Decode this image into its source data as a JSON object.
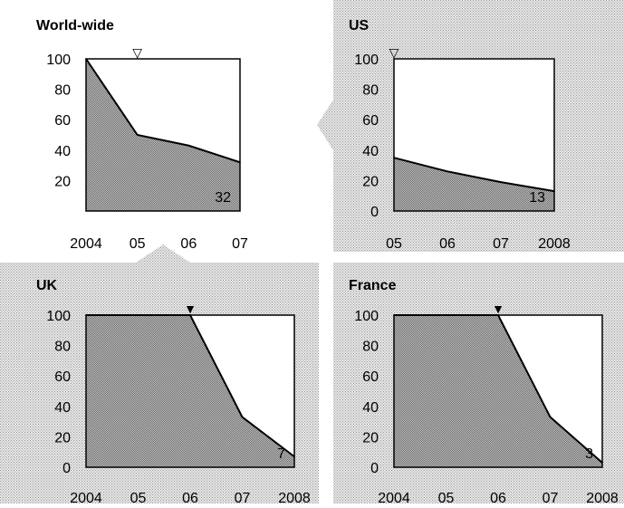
{
  "chart_data": [
    {
      "type": "area",
      "title": "World-wide",
      "x": [
        2004,
        2005,
        2006,
        2007
      ],
      "x_tick_labels": [
        "2004",
        "05",
        "06",
        "07"
      ],
      "values": [
        100,
        50,
        43,
        32
      ],
      "y_ticks": [
        20,
        40,
        60,
        80,
        100
      ],
      "ylim": [
        0,
        100
      ],
      "end_label": "32",
      "marker_x": 2005,
      "marker": "▽"
    },
    {
      "type": "area",
      "title": "US",
      "x": [
        2005,
        2006,
        2007,
        2008
      ],
      "x_tick_labels": [
        "05",
        "06",
        "07",
        "2008"
      ],
      "values": [
        35,
        26,
        19,
        13
      ],
      "y_ticks": [
        0,
        20,
        40,
        60,
        80,
        100
      ],
      "ylim": [
        0,
        100
      ],
      "end_label": "13",
      "marker_x": 2005,
      "marker": "▽"
    },
    {
      "type": "area",
      "title": "UK",
      "x": [
        2004,
        2005,
        2006,
        2007,
        2008
      ],
      "x_tick_labels": [
        "2004",
        "05",
        "06",
        "07",
        "2008"
      ],
      "values": [
        100,
        100,
        100,
        33,
        7
      ],
      "y_ticks": [
        0,
        20,
        40,
        60,
        80,
        100
      ],
      "ylim": [
        0,
        100
      ],
      "end_label": "7",
      "marker_x": 2006,
      "marker": "▼"
    },
    {
      "type": "area",
      "title": "France",
      "x": [
        2004,
        2005,
        2006,
        2007,
        2008
      ],
      "x_tick_labels": [
        "2004",
        "05",
        "06",
        "07",
        "2008"
      ],
      "values": [
        100,
        100,
        100,
        33,
        3
      ],
      "y_ticks": [
        0,
        20,
        40,
        60,
        80,
        100
      ],
      "ylim": [
        0,
        100
      ],
      "end_label": "3",
      "marker_x": 2006,
      "marker": "▼"
    }
  ],
  "colors": {
    "panel_bg": "#cfcfcf",
    "area_fill": "#9a9a9a",
    "plot_bg": "#ffffff",
    "line": "#000000"
  }
}
